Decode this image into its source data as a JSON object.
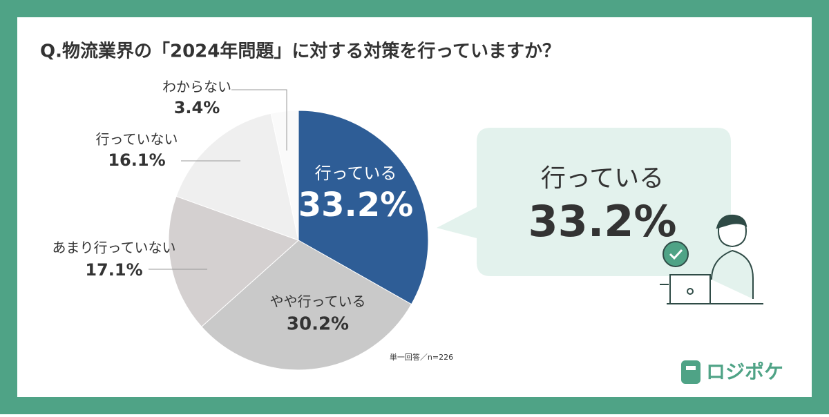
{
  "chart_data": {
    "type": "pie",
    "title": "Q.物流業界の「2024年問題」に対する対策を行っていますか？",
    "categories": [
      "行っている",
      "やや行っている",
      "あまり行っていない",
      "行っていない",
      "わからない"
    ],
    "values": [
      33.2,
      30.2,
      17.1,
      16.1,
      3.4
    ],
    "value_labels": [
      "33.2%",
      "30.2%",
      "17.1%",
      "16.1%",
      "3.4%"
    ],
    "colors": [
      "#2e5d96",
      "#c9c9c9",
      "#d4d0d0",
      "#efefef",
      "#fafafa"
    ],
    "note": "単一回答／n=226",
    "brand": "ロジポケ"
  }
}
